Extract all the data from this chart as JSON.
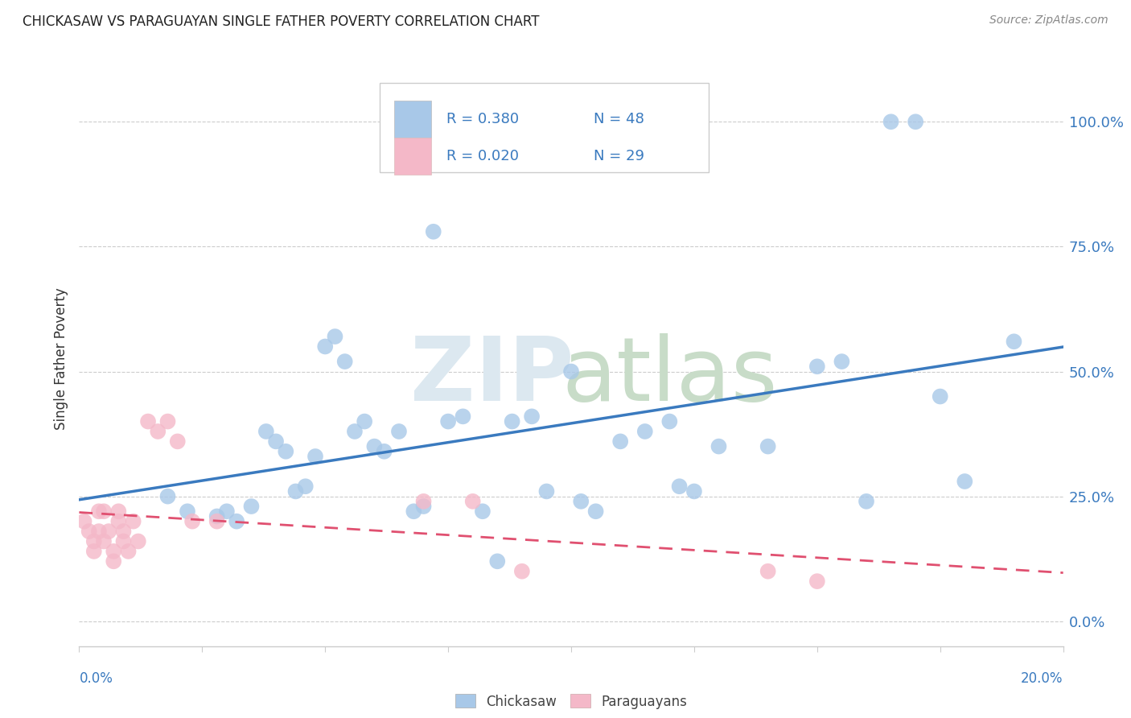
{
  "title": "CHICKASAW VS PARAGUAYAN SINGLE FATHER POVERTY CORRELATION CHART",
  "source": "Source: ZipAtlas.com",
  "ylabel": "Single Father Poverty",
  "yticks_labels": [
    "0.0%",
    "25.0%",
    "50.0%",
    "75.0%",
    "100.0%"
  ],
  "ytick_vals": [
    0.0,
    0.25,
    0.5,
    0.75,
    1.0
  ],
  "xlim": [
    0.0,
    0.2
  ],
  "ylim": [
    -0.05,
    1.1
  ],
  "legend_blue_r": "R = 0.380",
  "legend_blue_n": "N = 48",
  "legend_pink_r": "R = 0.020",
  "legend_pink_n": "N = 29",
  "blue_scatter_color": "#a8c8e8",
  "pink_scatter_color": "#f4b8c8",
  "blue_line_color": "#3a7abf",
  "pink_line_color": "#e05070",
  "grid_color": "#cccccc",
  "watermark_zip_color": "#dce8f0",
  "watermark_atlas_color": "#c8dcc8",
  "chickasaw_x": [
    0.018,
    0.022,
    0.028,
    0.03,
    0.032,
    0.035,
    0.038,
    0.04,
    0.042,
    0.044,
    0.046,
    0.048,
    0.05,
    0.052,
    0.054,
    0.056,
    0.058,
    0.06,
    0.062,
    0.065,
    0.068,
    0.07,
    0.072,
    0.075,
    0.078,
    0.082,
    0.085,
    0.088,
    0.092,
    0.095,
    0.1,
    0.102,
    0.105,
    0.11,
    0.115,
    0.12,
    0.122,
    0.125,
    0.13,
    0.14,
    0.15,
    0.155,
    0.16,
    0.165,
    0.17,
    0.175,
    0.18,
    0.19
  ],
  "chickasaw_y": [
    0.25,
    0.22,
    0.21,
    0.22,
    0.2,
    0.23,
    0.38,
    0.36,
    0.34,
    0.26,
    0.27,
    0.33,
    0.55,
    0.57,
    0.52,
    0.38,
    0.4,
    0.35,
    0.34,
    0.38,
    0.22,
    0.23,
    0.78,
    0.4,
    0.41,
    0.22,
    0.12,
    0.4,
    0.41,
    0.26,
    0.5,
    0.24,
    0.22,
    0.36,
    0.38,
    0.4,
    0.27,
    0.26,
    0.35,
    0.35,
    0.51,
    0.52,
    0.24,
    1.0,
    1.0,
    0.45,
    0.28,
    0.56
  ],
  "paraguayan_x": [
    0.001,
    0.002,
    0.003,
    0.003,
    0.004,
    0.004,
    0.005,
    0.005,
    0.006,
    0.007,
    0.007,
    0.008,
    0.008,
    0.009,
    0.009,
    0.01,
    0.011,
    0.012,
    0.014,
    0.016,
    0.018,
    0.02,
    0.023,
    0.028,
    0.07,
    0.08,
    0.09,
    0.14,
    0.15
  ],
  "paraguayan_y": [
    0.2,
    0.18,
    0.16,
    0.14,
    0.22,
    0.18,
    0.22,
    0.16,
    0.18,
    0.14,
    0.12,
    0.2,
    0.22,
    0.18,
    0.16,
    0.14,
    0.2,
    0.16,
    0.4,
    0.38,
    0.4,
    0.36,
    0.2,
    0.2,
    0.24,
    0.24,
    0.1,
    0.1,
    0.08
  ]
}
